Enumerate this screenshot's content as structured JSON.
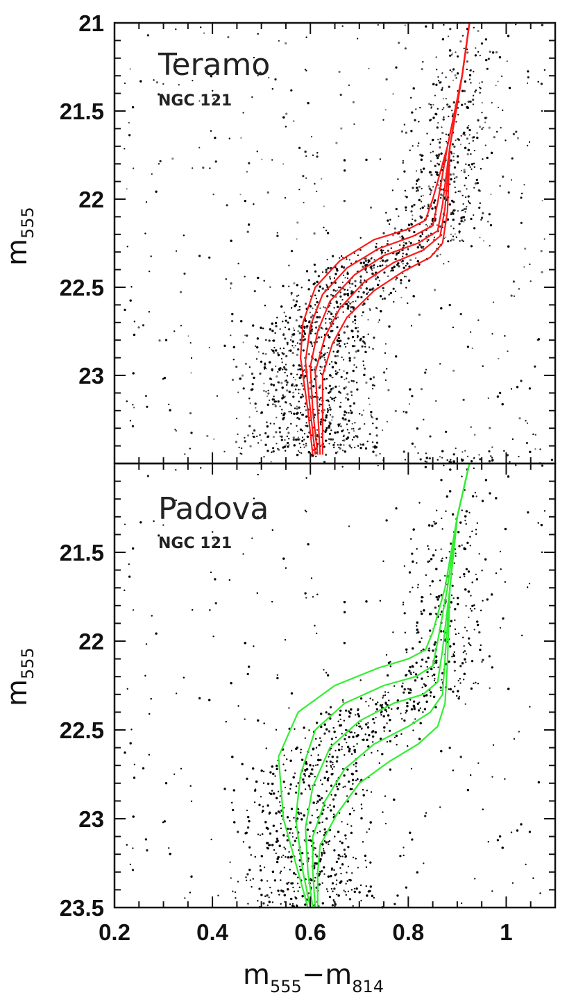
{
  "chart_data": [
    {
      "type": "scatter",
      "panel": "top",
      "title": "Teramo",
      "subtitle": "NGC 121",
      "ylabel": {
        "main": "m",
        "sub": "555"
      },
      "xlim": [
        0.2,
        1.1
      ],
      "ylim_inverted": [
        21.0,
        23.5
      ],
      "yticks": [
        21,
        21.5,
        22,
        22.5,
        23
      ],
      "ytick_labels": [
        "21",
        "21.5",
        "22",
        "22.5",
        "23"
      ],
      "grid": false,
      "point_color": "#000000",
      "isochrone_color": "#ff1a1a",
      "scatter_description_points": [
        [
          0.6,
          23.45
        ],
        [
          0.61,
          23.3
        ],
        [
          0.59,
          23.1
        ],
        [
          0.62,
          22.95
        ],
        [
          0.64,
          22.75
        ],
        [
          0.67,
          22.55
        ],
        [
          0.72,
          22.42
        ],
        [
          0.78,
          22.33
        ],
        [
          0.84,
          22.25
        ],
        [
          0.87,
          22.05
        ],
        [
          0.89,
          21.7
        ],
        [
          0.91,
          21.3
        ]
      ],
      "series": [
        {
          "x": [
            0.605,
            0.595,
            0.58,
            0.585,
            0.61,
            0.66,
            0.73,
            0.8,
            0.835,
            0.85,
            0.88,
            0.91,
            0.925
          ],
          "y": [
            23.45,
            23.2,
            22.9,
            22.7,
            22.5,
            22.35,
            22.23,
            22.17,
            22.12,
            22.0,
            21.7,
            21.3,
            21.0
          ]
        },
        {
          "x": [
            0.61,
            0.6,
            0.59,
            0.6,
            0.625,
            0.675,
            0.74,
            0.81,
            0.85,
            0.86,
            0.88,
            0.91,
            0.925
          ],
          "y": [
            23.45,
            23.2,
            22.92,
            22.72,
            22.54,
            22.39,
            22.28,
            22.21,
            22.15,
            22.02,
            21.7,
            21.3,
            21.0
          ]
        },
        {
          "x": [
            0.615,
            0.605,
            0.6,
            0.615,
            0.64,
            0.69,
            0.75,
            0.82,
            0.86,
            0.87,
            0.885,
            0.91,
            0.925
          ],
          "y": [
            23.45,
            23.2,
            22.95,
            22.75,
            22.58,
            22.43,
            22.32,
            22.25,
            22.18,
            22.03,
            21.7,
            21.3,
            21.0
          ]
        },
        {
          "x": [
            0.62,
            0.615,
            0.61,
            0.63,
            0.66,
            0.71,
            0.77,
            0.83,
            0.865,
            0.875,
            0.885,
            0.91,
            0.925
          ],
          "y": [
            23.45,
            23.2,
            22.98,
            22.78,
            22.62,
            22.47,
            22.36,
            22.29,
            22.21,
            22.05,
            21.7,
            21.3,
            21.0
          ]
        },
        {
          "x": [
            0.625,
            0.625,
            0.625,
            0.645,
            0.675,
            0.73,
            0.79,
            0.845,
            0.87,
            0.88,
            0.885,
            0.91,
            0.925
          ],
          "y": [
            23.45,
            23.2,
            23.0,
            22.82,
            22.67,
            22.52,
            22.41,
            22.33,
            22.25,
            22.07,
            21.7,
            21.3,
            21.0
          ]
        }
      ]
    },
    {
      "type": "scatter",
      "panel": "bottom",
      "title": "Padova",
      "subtitle": "NGC 121",
      "ylabel": {
        "main": "m",
        "sub": "555"
      },
      "xlabel": {
        "a": "m",
        "a_sub": "555",
        "minus": "−",
        "b": "m",
        "b_sub": "814"
      },
      "xlim": [
        0.2,
        1.1
      ],
      "ylim_inverted": [
        21.0,
        23.5
      ],
      "yticks": [
        21.5,
        22,
        22.5,
        23,
        23.5
      ],
      "ytick_labels": [
        "21.5",
        "22",
        "22.5",
        "23",
        "23.5"
      ],
      "xticks": [
        0.2,
        0.4,
        0.6,
        0.8,
        1.0
      ],
      "xtick_labels": [
        "0.2",
        "0.4",
        "0.6",
        "0.8",
        "1"
      ],
      "grid": false,
      "point_color": "#000000",
      "isochrone_color": "#33ee33",
      "series": [
        {
          "x": [
            0.595,
            0.575,
            0.545,
            0.535,
            0.575,
            0.65,
            0.74,
            0.8,
            0.835,
            0.85,
            0.875,
            0.9,
            0.925
          ],
          "y": [
            23.5,
            23.3,
            23.0,
            22.65,
            22.4,
            22.25,
            22.15,
            22.1,
            22.05,
            21.95,
            21.7,
            21.3,
            21.0
          ]
        },
        {
          "x": [
            0.6,
            0.585,
            0.57,
            0.58,
            0.61,
            0.67,
            0.75,
            0.815,
            0.85,
            0.86,
            0.88,
            0.9,
            0.925
          ],
          "y": [
            23.5,
            23.3,
            23.0,
            22.75,
            22.5,
            22.35,
            22.25,
            22.2,
            22.14,
            22.0,
            21.7,
            21.3,
            21.0
          ]
        },
        {
          "x": [
            0.605,
            0.595,
            0.59,
            0.605,
            0.64,
            0.7,
            0.77,
            0.83,
            0.86,
            0.87,
            0.885,
            0.9,
            0.925
          ],
          "y": [
            23.5,
            23.3,
            23.05,
            22.82,
            22.6,
            22.45,
            22.35,
            22.3,
            22.23,
            22.05,
            21.7,
            21.3,
            21.0
          ]
        },
        {
          "x": [
            0.61,
            0.605,
            0.605,
            0.63,
            0.67,
            0.73,
            0.8,
            0.845,
            0.87,
            0.875,
            0.885,
            0.9,
            0.925
          ],
          "y": [
            23.5,
            23.3,
            23.1,
            22.9,
            22.72,
            22.58,
            22.48,
            22.4,
            22.3,
            22.1,
            21.7,
            21.3,
            21.0
          ]
        },
        {
          "x": [
            0.615,
            0.615,
            0.62,
            0.655,
            0.7,
            0.76,
            0.82,
            0.86,
            0.875,
            0.88,
            0.885,
            0.9,
            0.925
          ],
          "y": [
            23.5,
            23.3,
            23.15,
            22.97,
            22.8,
            22.68,
            22.58,
            22.48,
            22.35,
            22.12,
            21.7,
            21.3,
            21.0
          ]
        }
      ]
    }
  ]
}
